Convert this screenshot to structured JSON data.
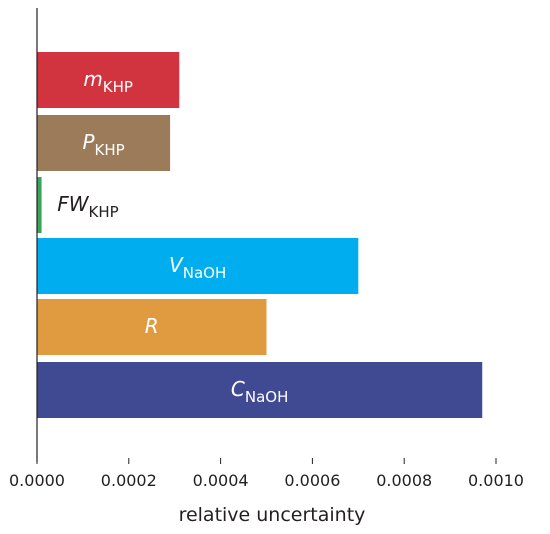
{
  "chart_data": {
    "type": "bar",
    "orientation": "horizontal",
    "title": "",
    "xlabel": "relative uncertainty",
    "ylabel": "",
    "xlim": [
      0,
      0.001
    ],
    "x_ticks": [
      "0.0000",
      "0.0002",
      "0.0004",
      "0.0006",
      "0.0008",
      "0.0010"
    ],
    "x_tick_values": [
      0,
      0.0002,
      0.0004,
      0.0006,
      0.0008,
      0.001
    ],
    "grid": false,
    "bars": [
      {
        "symbol": "m",
        "subscript": "KHP",
        "value": 0.00031,
        "color": "#d1343e",
        "label_color": "#ffffff"
      },
      {
        "symbol": "P",
        "subscript": "KHP",
        "value": 0.00029,
        "color": "#9c7b5a",
        "label_color": "#ffffff"
      },
      {
        "symbol": "FW",
        "subscript": "KHP",
        "value": 1e-05,
        "color": "#3aa55a",
        "label_color": "#231f20"
      },
      {
        "symbol": "V",
        "subscript": "NaOH",
        "value": 0.0007,
        "color": "#00aeef",
        "label_color": "#ffffff"
      },
      {
        "symbol": "R",
        "subscript": "",
        "value": 0.0005,
        "color": "#e09a40",
        "label_color": "#ffffff"
      },
      {
        "symbol": "C",
        "subscript": "NaOH",
        "value": 0.00097,
        "color": "#3f4a93",
        "label_color": "#ffffff"
      }
    ]
  }
}
